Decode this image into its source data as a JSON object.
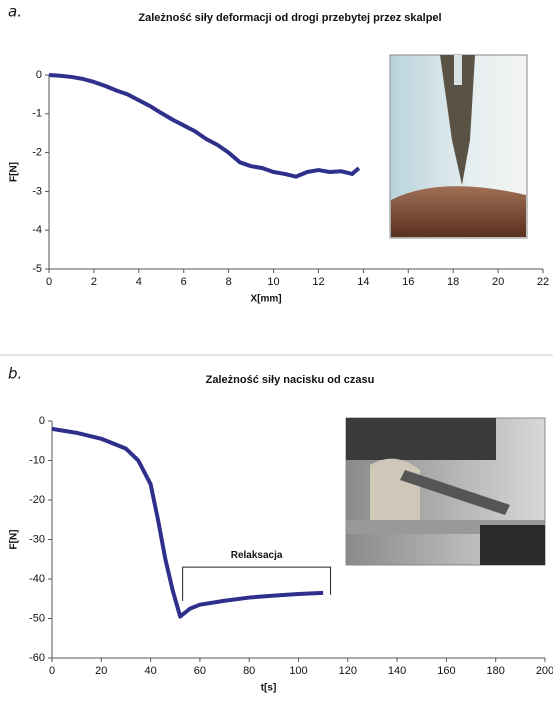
{
  "chart_data": [
    {
      "type": "line",
      "panel_label": "a.",
      "title": "Zależność siły deformacji od drogi przebytej przez skalpel",
      "x_label": "X[mm]",
      "y_label": "F[N]",
      "xlim": [
        0,
        22
      ],
      "xticks": [
        0,
        2,
        4,
        6,
        8,
        10,
        12,
        14,
        16,
        18,
        20,
        22
      ],
      "ylim": [
        -5,
        0
      ],
      "yticks": [
        0,
        -1,
        -2,
        -3,
        -4,
        -5
      ],
      "series": [
        {
          "color": "#2f2f8c",
          "x": [
            0,
            0.5,
            1,
            1.5,
            2,
            2.5,
            3,
            3.5,
            4,
            4.5,
            5,
            5.5,
            6,
            6.5,
            7,
            7.5,
            8,
            8.5,
            9,
            9.5,
            10,
            10.5,
            11,
            11.5,
            12,
            12.5,
            13,
            13.5,
            13.8
          ],
          "values": [
            0,
            -0.02,
            -0.05,
            -0.1,
            -0.18,
            -0.28,
            -0.4,
            -0.5,
            -0.65,
            -0.8,
            -0.98,
            -1.15,
            -1.3,
            -1.45,
            -1.65,
            -1.8,
            -2.0,
            -2.25,
            -2.35,
            -2.4,
            -2.5,
            -2.55,
            -2.62,
            -2.5,
            -2.45,
            -2.5,
            -2.48,
            -2.55,
            -2.4
          ]
        }
      ]
    },
    {
      "type": "line",
      "panel_label": "b.",
      "title": "Zależność siły nacisku od czasu",
      "x_label": "t[s]",
      "y_label": "F[N]",
      "xlim": [
        0,
        200
      ],
      "xticks": [
        0,
        20,
        40,
        60,
        80,
        100,
        120,
        140,
        160,
        180,
        200
      ],
      "ylim": [
        -60,
        0
      ],
      "yticks": [
        0,
        -10,
        -20,
        -30,
        -40,
        -50,
        -60
      ],
      "series": [
        {
          "color": "#2f2f8c",
          "x": [
            0,
            10,
            20,
            30,
            35,
            40,
            43,
            46,
            49,
            52,
            53,
            56,
            60,
            70,
            80,
            90,
            100,
            110
          ],
          "values": [
            -2,
            -3,
            -4.5,
            -7,
            -10,
            -16,
            -25,
            -35,
            -43,
            -49.5,
            -49,
            -47.5,
            -46.5,
            -45.5,
            -44.7,
            -44.2,
            -43.8,
            -43.5
          ]
        }
      ],
      "annotation": {
        "text": "Relaksacja",
        "x": [
          53,
          113
        ],
        "y": -37
      }
    }
  ]
}
